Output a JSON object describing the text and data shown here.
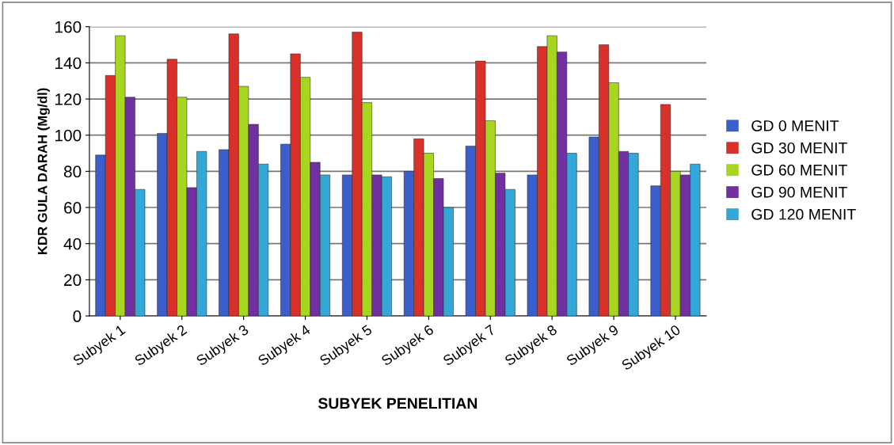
{
  "chart_data": {
    "type": "bar",
    "xlabel": "SUBYEK PENELITIAN",
    "ylabel": "KDR GULA DARAH (Mg/dl)",
    "categories": [
      "Subyek 1",
      "Subyek 2",
      "Subyek 3",
      "Subyek 4",
      "Subyek 5",
      "Subyek 6",
      "Subyek 7",
      "Subyek 8",
      "Subyek 9",
      "Subyek 10"
    ],
    "series": [
      {
        "name": "GD 0 MENIT",
        "color": "#3a5fcd",
        "values": [
          89,
          101,
          92,
          95,
          78,
          80,
          94,
          78,
          99,
          72
        ]
      },
      {
        "name": "GD 30 MENIT",
        "color": "#d9302a",
        "values": [
          133,
          142,
          156,
          145,
          157,
          98,
          141,
          149,
          150,
          117
        ]
      },
      {
        "name": "GD 60 MENIT",
        "color": "#a6d620",
        "values": [
          155,
          121,
          127,
          132,
          118,
          90,
          108,
          155,
          129,
          80
        ]
      },
      {
        "name": "GD 90 MENIT",
        "color": "#7030a0",
        "values": [
          121,
          71,
          106,
          85,
          78,
          76,
          79,
          146,
          91,
          78
        ]
      },
      {
        "name": "GD 120 MENIT",
        "color": "#33a8d8",
        "values": [
          70,
          91,
          84,
          78,
          77,
          60,
          70,
          90,
          90,
          84
        ]
      }
    ],
    "ylim": [
      0,
      160
    ],
    "yticks": [
      0,
      20,
      40,
      60,
      80,
      100,
      120,
      140,
      160
    ],
    "grid": "y",
    "legend": "right"
  }
}
